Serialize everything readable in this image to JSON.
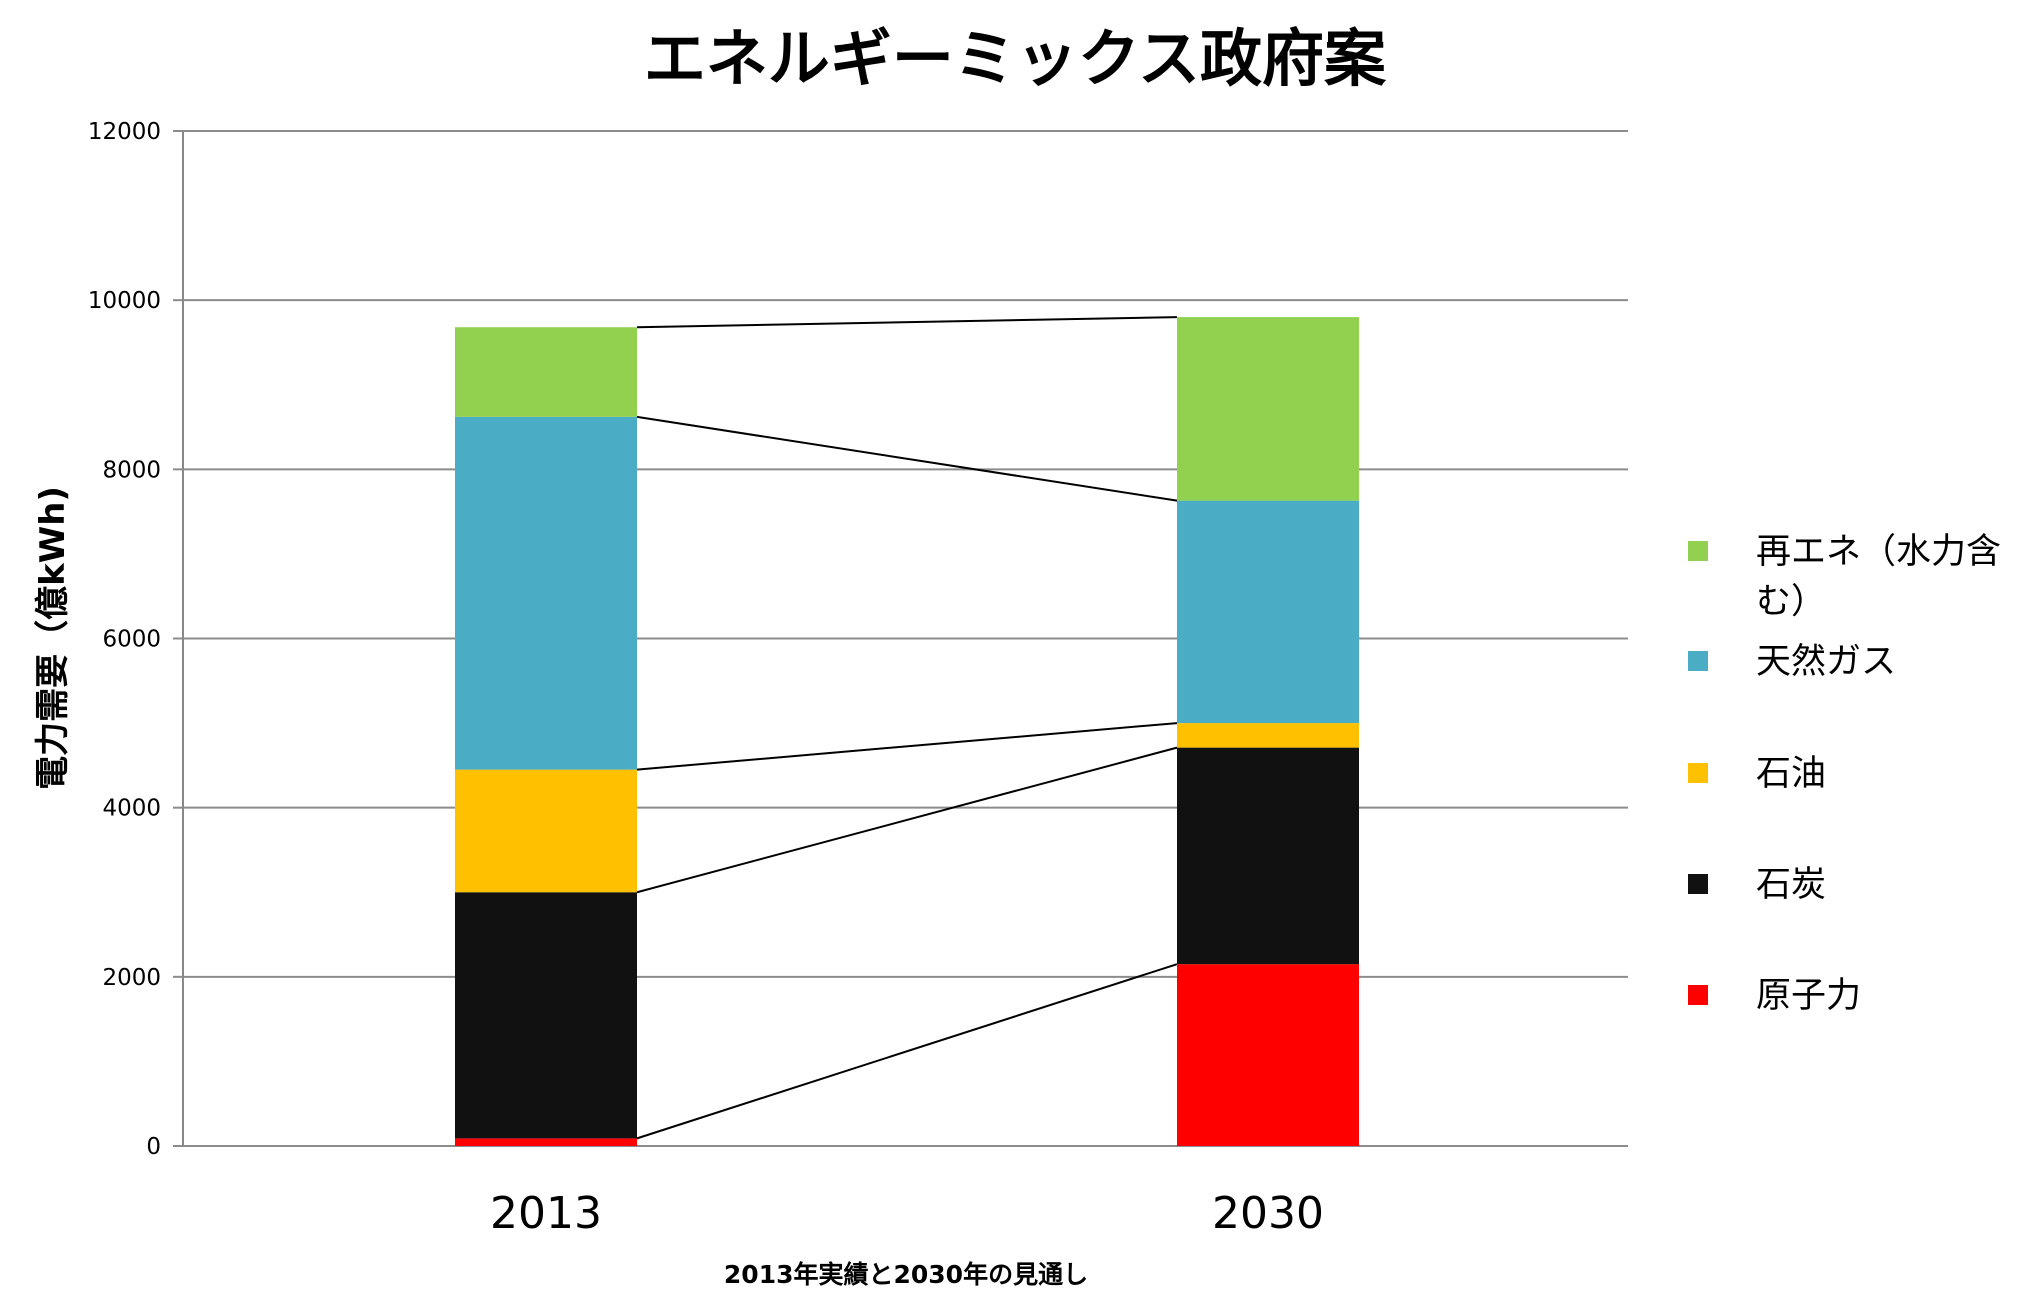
{
  "chart_data": {
    "type": "bar",
    "stacked": true,
    "title": "エネルギーミックス政府案",
    "xlabel": "2013年実績と2030年の見通し",
    "ylabel": "電力需要（億kWh)",
    "ylim": [
      0,
      12000
    ],
    "yticks": [
      "0",
      "2000",
      "4000",
      "6000",
      "8000",
      "10000",
      "12000"
    ],
    "categories": [
      "2013",
      "2030"
    ],
    "grid": true,
    "legend_position": "right",
    "series_connectors": true,
    "series": [
      {
        "name": "原子力",
        "color": "#ff0000",
        "values": [
          90,
          2150
        ]
      },
      {
        "name": "石炭",
        "color": "#111111",
        "values": [
          2910,
          2560
        ]
      },
      {
        "name": "石油",
        "color": "#ffc000",
        "values": [
          1450,
          290
        ]
      },
      {
        "name": "天然ガス",
        "color": "#4bacc6",
        "values": [
          4170,
          2630
        ]
      },
      {
        "name": "再エネ（水力含む）",
        "color": "#92d050",
        "values": [
          1060,
          2170
        ]
      }
    ],
    "legend_entries": [
      {
        "lines": [
          "再エネ（水力含",
          "む）"
        ],
        "color": "#92d050"
      },
      {
        "lines": [
          "天然ガス"
        ],
        "color": "#4bacc6"
      },
      {
        "lines": [
          "石油"
        ],
        "color": "#ffc000"
      },
      {
        "lines": [
          "石炭"
        ],
        "color": "#111111"
      },
      {
        "lines": [
          "原子力"
        ],
        "color": "#ff0000"
      }
    ]
  }
}
